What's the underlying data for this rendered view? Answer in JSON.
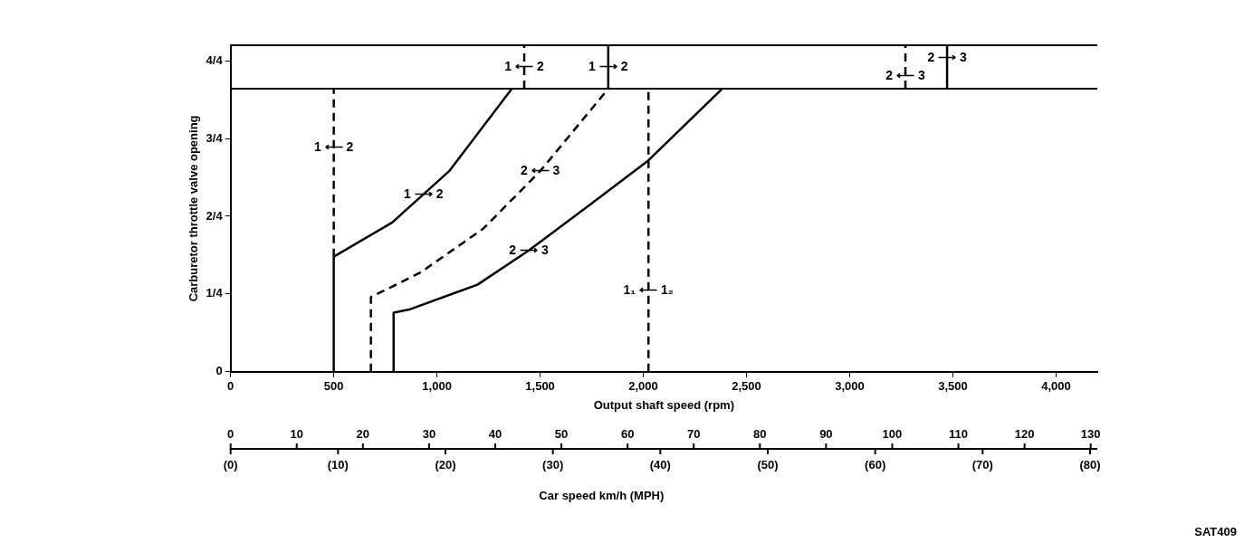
{
  "chart_data": {
    "type": "line",
    "xlabel": "Output shaft speed (rpm)",
    "ylabel": "Carburetor throttle valve opening",
    "x2label": "Car speed km/h (MPH)",
    "xlim": [
      0,
      4200
    ],
    "xticks": [
      0,
      500,
      {
        "value": 1000,
        "label": "1,000"
      },
      {
        "value": 1500,
        "label": "1,500"
      },
      {
        "value": 2000,
        "label": "2,000"
      },
      {
        "value": 2500,
        "label": "2,500"
      },
      {
        "value": 3000,
        "label": "3,000"
      },
      {
        "value": 3500,
        "label": "3,500"
      },
      {
        "value": 4000,
        "label": "4,000"
      }
    ],
    "ylim": [
      0,
      1.05
    ],
    "yticks": [
      0,
      {
        "value": 0.25,
        "label": "1/4"
      },
      {
        "value": 0.5,
        "label": "2/4"
      },
      {
        "value": 0.75,
        "label": "3/4"
      },
      {
        "value": 1,
        "label": "4/4"
      }
    ],
    "x2lim": [
      0,
      131
    ],
    "x2ticks": [
      0,
      10,
      20,
      30,
      40,
      50,
      60,
      70,
      80,
      90,
      100,
      110,
      120,
      130
    ],
    "series": [
      {
        "color": "#000000",
        "line_style": "solid",
        "x": [
          500,
          500,
          783,
          1059,
          1363
        ],
        "values": [
          0,
          0.37,
          0.48,
          0.645,
          0.91
        ]
      },
      {
        "color": "#000000",
        "line_style": "dashed",
        "x": [
          500,
          500
        ],
        "values": [
          0.37,
          0.91
        ]
      },
      {
        "color": "#000000",
        "line_style": "dashed",
        "x": [
          680,
          680,
          922,
          1224,
          1500,
          1830
        ],
        "values": [
          0,
          0.24,
          0.32,
          0.46,
          0.645,
          0.91
        ]
      },
      {
        "color": "#000000",
        "line_style": "solid",
        "x": [
          790,
          790,
          865,
          1196,
          1445,
          1747,
          2025,
          2382
        ],
        "values": [
          0,
          0.19,
          0.2,
          0.28,
          0.39,
          0.54,
          0.68,
          0.91
        ]
      },
      {
        "color": "#000000",
        "line_style": "dashed",
        "x": [
          2025,
          2025
        ],
        "values": [
          0,
          0.91
        ]
      },
      {
        "color": "#000000",
        "line_style": "dashed",
        "x": [
          1423,
          1423
        ],
        "values": [
          0.91,
          1.05
        ]
      },
      {
        "color": "#000000",
        "line_style": "solid",
        "x": [
          1830,
          1830
        ],
        "values": [
          0.91,
          1.05
        ]
      },
      {
        "color": "#000000",
        "line_style": "dashed",
        "x": [
          3270,
          3270
        ],
        "values": [
          0.91,
          1.05
        ]
      },
      {
        "color": "#000000",
        "line_style": "solid",
        "x": [
          3472,
          3472
        ],
        "values": [
          0.91,
          1.05
        ]
      }
    ],
    "ref_lines": [
      {
        "axis": "y",
        "value": 0.91,
        "color": "#000000"
      },
      {
        "axis": "y",
        "value": 1.05,
        "color": "#000000"
      }
    ],
    "marker": "none",
    "grid": false,
    "legend": false,
    "annotations": [
      {
        "text": "1 ⟵ 2",
        "x": 1423,
        "y": 0.98
      },
      {
        "text": "1 ⟶ 2",
        "x": 1830,
        "y": 0.98
      },
      {
        "text": "2 ⟶ 3",
        "x": 3472,
        "y": 1.01
      },
      {
        "text": "2 ⟵ 3",
        "x": 3270,
        "y": 0.95
      },
      {
        "text": "1 ⟵ 2",
        "x": 500,
        "y": 0.72
      },
      {
        "text": "1 ⟶ 2",
        "x": 935,
        "y": 0.57
      },
      {
        "text": "2 ⟵ 3",
        "x": 1500,
        "y": 0.645
      },
      {
        "text": "2 ⟶ 3",
        "x": 1445,
        "y": 0.39
      },
      {
        "text": "1₁ ⟵ 1₂",
        "x": 2025,
        "y": 0.26
      },
      "(0)",
      "(10)",
      "(20)",
      "(30)",
      "(40)",
      "(50)",
      "(60)",
      "(70)",
      "(80)",
      "SAT409"
    ]
  }
}
